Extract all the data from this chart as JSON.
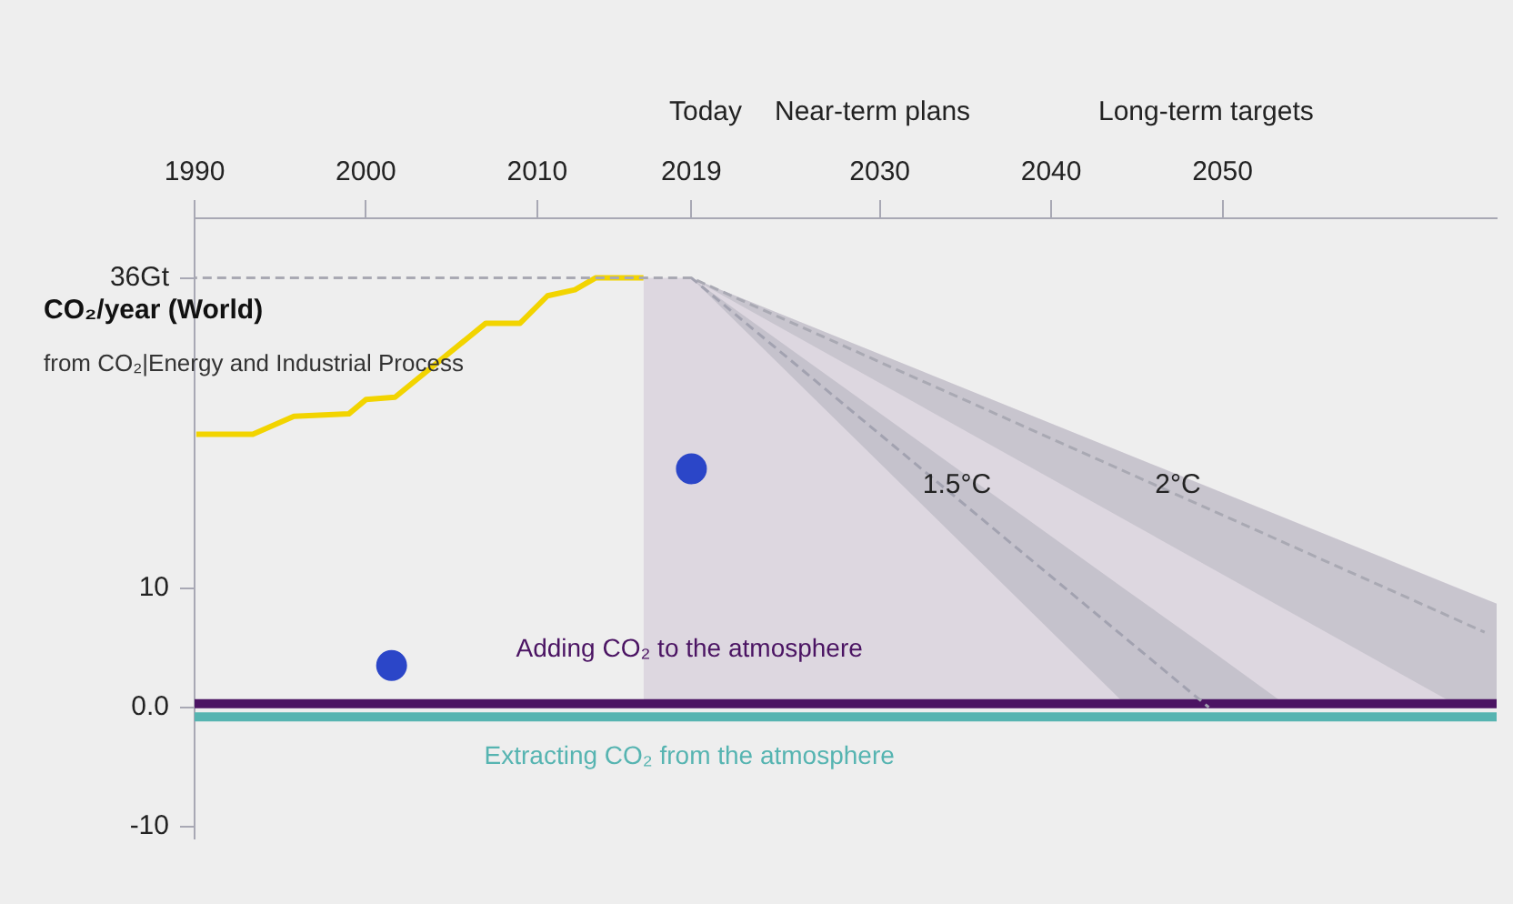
{
  "chart_data": {
    "type": "line",
    "title": "CO₂/year (World)",
    "subtitle": "from CO₂|Energy and Industrial Process",
    "xlim": [
      1990,
      2066
    ],
    "xticks": [
      1990,
      2000,
      2010,
      2019,
      2030,
      2040,
      2050
    ],
    "ylim": [
      -11,
      41
    ],
    "yticks": [
      {
        "value": 36,
        "label": "36Gt"
      },
      10,
      {
        "value": 0,
        "label": "0.0"
      },
      -10
    ],
    "grid": false,
    "legend": false,
    "annotations": [
      "Today",
      "Near-term plans",
      "Long-term targets",
      {
        "text": "1.5°C",
        "x": 2034.5,
        "y": 18.6
      },
      {
        "text": "2°C",
        "x": 2047.4,
        "y": 18.6
      }
    ],
    "series": [
      {
        "type": "area",
        "color": "#ddd7e0",
        "x": [
          2016.2,
          2019,
          2066
        ],
        "values": [
          36,
          36,
          8.7
        ]
      },
      {
        "type": "line",
        "color": "#a9a9b3",
        "line_style": "dashed",
        "x": [
          1990,
          2019,
          2063.9,
          2065.3,
          2066
        ],
        "values": [
          36,
          36,
          7.2,
          6.3,
          null
        ],
        "lower": [
          null,
          36,
          0,
          0,
          0
        ],
        "upper": [
          null,
          36,
          9.9,
          9.1,
          8.7
        ]
      },
      {
        "type": "line",
        "color": "#a2a2b0",
        "line_style": "dashed",
        "x": [
          2019,
          2044.5,
          2049.2,
          2053.9
        ],
        "values": [
          36,
          5.6,
          0,
          null
        ],
        "lower": [
          36,
          0,
          0,
          0
        ],
        "upper": [
          36,
          9.7,
          4.9,
          0
        ]
      },
      {
        "type": "line",
        "color": "#f2d400",
        "x": [
          1990.1,
          1993.4,
          1995.8,
          1999.0,
          2000.0,
          2001.7,
          2007.0,
          2009.0,
          2010.6,
          2012.2,
          2013.4,
          2016.2
        ],
        "values": [
          22.9,
          22.9,
          24.4,
          24.6,
          25.8,
          26.0,
          32.2,
          32.2,
          34.5,
          35.0,
          36,
          36
        ]
      },
      {
        "type": "line",
        "name": "Adding CO₂ to the atmosphere",
        "color": "#4b1463",
        "x": [
          1990,
          2066
        ],
        "values": [
          0.3,
          0.3
        ]
      },
      {
        "type": "line",
        "name": "Extracting CO₂ from the atmosphere",
        "color": "#56b4b1",
        "x": [
          1990,
          2066
        ],
        "values": [
          -0.8,
          -0.8
        ]
      },
      {
        "type": "scatter",
        "color": "#2b46c8",
        "marker": "circle",
        "x": [
          2001.5,
          2019
        ],
        "values": [
          3.5,
          20
        ]
      }
    ]
  }
}
